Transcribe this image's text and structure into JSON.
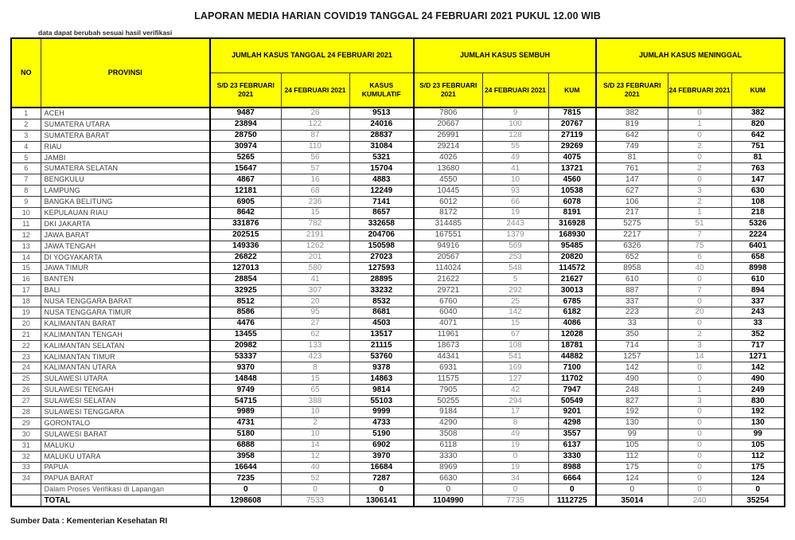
{
  "title": "LAPORAN MEDIA HARIAN COVID19 TANGGAL 24 FEBRUARI 2021 PUKUL 12.00 WIB",
  "note": "data dapat berubah sesuai hasil verifikasi",
  "source": "Sumber Data : Kementerian Kesehatan RI",
  "colors": {
    "header_bg": "#FFFF00",
    "border": "#000000"
  },
  "table": {
    "headers": {
      "no": "NO",
      "provinsi": "PROVINSI",
      "groups": [
        {
          "label": "JUMLAH KASUS TANGGAL 24 FEBRUARI 2021",
          "sub": [
            "S/D 23 FEBRUARI 2021",
            "24 FEBRUARI 2021",
            "KASUS KUMULATIF"
          ]
        },
        {
          "label": "JUMLAH KASUS SEMBUH",
          "sub": [
            "S/D 23 FEBRUARI 2021",
            "24 FEBRUARI 2021",
            "KUM"
          ]
        },
        {
          "label": "JUMLAH KASUS MENINGGAL",
          "sub": [
            "S/D 23 FEBRUARI 2021",
            "24 FEBRUARI 2021",
            "KUM"
          ]
        }
      ]
    },
    "rows": [
      {
        "no": 1,
        "name": "ACEH",
        "values": [
          9487,
          26,
          9513,
          7806,
          9,
          7815,
          382,
          0,
          382
        ]
      },
      {
        "no": 2,
        "name": "SUMATERA UTARA",
        "values": [
          23894,
          122,
          24016,
          20667,
          100,
          20767,
          819,
          1,
          820
        ]
      },
      {
        "no": 3,
        "name": "SUMATERA BARAT",
        "values": [
          28750,
          87,
          28837,
          26991,
          128,
          27119,
          642,
          0,
          642
        ]
      },
      {
        "no": 4,
        "name": "RIAU",
        "values": [
          30974,
          110,
          31084,
          29214,
          55,
          29269,
          749,
          2,
          751
        ]
      },
      {
        "no": 5,
        "name": "JAMBI",
        "values": [
          5265,
          56,
          5321,
          4026,
          49,
          4075,
          81,
          0,
          81
        ]
      },
      {
        "no": 6,
        "name": "SUMATERA SELATAN",
        "values": [
          15647,
          57,
          15704,
          13680,
          41,
          13721,
          761,
          2,
          763
        ]
      },
      {
        "no": 7,
        "name": "BENGKULU",
        "values": [
          4867,
          16,
          4883,
          4550,
          10,
          4560,
          147,
          0,
          147
        ]
      },
      {
        "no": 8,
        "name": "LAMPUNG",
        "values": [
          12181,
          68,
          12249,
          10445,
          93,
          10538,
          627,
          3,
          630
        ]
      },
      {
        "no": 9,
        "name": "BANGKA BELITUNG",
        "values": [
          6905,
          236,
          7141,
          6012,
          66,
          6078,
          106,
          2,
          108
        ]
      },
      {
        "no": 10,
        "name": "KEPULAUAN RIAU",
        "values": [
          8642,
          15,
          8657,
          8172,
          19,
          8191,
          217,
          1,
          218
        ]
      },
      {
        "no": 11,
        "name": "DKI JAKARTA",
        "values": [
          331876,
          782,
          332658,
          314485,
          2443,
          316928,
          5275,
          51,
          5326
        ]
      },
      {
        "no": 12,
        "name": "JAWA BARAT",
        "values": [
          202515,
          2191,
          204706,
          167551,
          1379,
          168930,
          2217,
          7,
          2224
        ]
      },
      {
        "no": 13,
        "name": "JAWA TENGAH",
        "values": [
          149336,
          1262,
          150598,
          94916,
          569,
          95485,
          6326,
          75,
          6401
        ]
      },
      {
        "no": 14,
        "name": "DI YOGYAKARTA",
        "values": [
          26822,
          201,
          27023,
          20567,
          253,
          20820,
          652,
          6,
          658
        ]
      },
      {
        "no": 15,
        "name": "JAWA TIMUR",
        "values": [
          127013,
          580,
          127593,
          114024,
          548,
          114572,
          8958,
          40,
          8998
        ]
      },
      {
        "no": 16,
        "name": "BANTEN",
        "values": [
          28854,
          41,
          28895,
          21622,
          5,
          21627,
          610,
          0,
          610
        ]
      },
      {
        "no": 17,
        "name": "BALI",
        "values": [
          32925,
          307,
          33232,
          29721,
          292,
          30013,
          887,
          7,
          894
        ]
      },
      {
        "no": 18,
        "name": "NUSA TENGGARA BARAT",
        "values": [
          8512,
          20,
          8532,
          6760,
          25,
          6785,
          337,
          0,
          337
        ]
      },
      {
        "no": 19,
        "name": "NUSA TENGGARA TIMUR",
        "values": [
          8586,
          95,
          8681,
          6040,
          142,
          6182,
          223,
          20,
          243
        ]
      },
      {
        "no": 20,
        "name": "KALIMANTAN BARAT",
        "values": [
          4476,
          27,
          4503,
          4071,
          15,
          4086,
          33,
          0,
          33
        ]
      },
      {
        "no": 21,
        "name": "KALIMANTAN TENGAH",
        "values": [
          13455,
          62,
          13517,
          11961,
          67,
          12028,
          350,
          2,
          352
        ]
      },
      {
        "no": 22,
        "name": "KALIMANTAN SELATAN",
        "values": [
          20982,
          133,
          21115,
          18673,
          108,
          18781,
          714,
          3,
          717
        ]
      },
      {
        "no": 23,
        "name": "KALIMANTAN TIMUR",
        "values": [
          53337,
          423,
          53760,
          44341,
          541,
          44882,
          1257,
          14,
          1271
        ]
      },
      {
        "no": 24,
        "name": "KALIMANTAN UTARA",
        "values": [
          9370,
          8,
          9378,
          6931,
          169,
          7100,
          142,
          0,
          142
        ]
      },
      {
        "no": 25,
        "name": "SULAWESI UTARA",
        "values": [
          14848,
          15,
          14863,
          11575,
          127,
          11702,
          490,
          0,
          490
        ]
      },
      {
        "no": 26,
        "name": "SULAWESI TENGAH",
        "values": [
          9749,
          65,
          9814,
          7905,
          42,
          7947,
          248,
          1,
          249
        ]
      },
      {
        "no": 27,
        "name": "SULAWESI SELATAN",
        "values": [
          54715,
          388,
          55103,
          50255,
          294,
          50549,
          827,
          3,
          830
        ]
      },
      {
        "no": 28,
        "name": "SULAWESI TENGGARA",
        "values": [
          9989,
          10,
          9999,
          9184,
          17,
          9201,
          192,
          0,
          192
        ]
      },
      {
        "no": 29,
        "name": "GORONTALO",
        "values": [
          4731,
          2,
          4733,
          4290,
          8,
          4298,
          130,
          0,
          130
        ]
      },
      {
        "no": 30,
        "name": "SULAWESI BARAT",
        "values": [
          5180,
          10,
          5190,
          3508,
          49,
          3557,
          99,
          0,
          99
        ]
      },
      {
        "no": 31,
        "name": "MALUKU",
        "values": [
          6888,
          14,
          6902,
          6118,
          19,
          6137,
          105,
          0,
          105
        ]
      },
      {
        "no": 32,
        "name": "MALUKU UTARA",
        "values": [
          3958,
          12,
          3970,
          3330,
          0,
          3330,
          112,
          0,
          112
        ]
      },
      {
        "no": 33,
        "name": "PAPUA",
        "values": [
          16644,
          40,
          16684,
          8969,
          19,
          8988,
          175,
          0,
          175
        ]
      },
      {
        "no": 34,
        "name": "PAPUA BARAT",
        "values": [
          7235,
          52,
          7287,
          6630,
          34,
          6664,
          124,
          0,
          124
        ]
      }
    ],
    "verification_row": {
      "label": "Dalam Proses Verifikasi di Lapangan",
      "values": [
        0,
        0,
        0,
        0,
        0,
        0,
        0,
        0,
        0
      ]
    },
    "total_row": {
      "label": "TOTAL",
      "values": [
        1298608,
        7533,
        1306141,
        1104990,
        7735,
        1112725,
        35014,
        240,
        35254
      ]
    }
  }
}
